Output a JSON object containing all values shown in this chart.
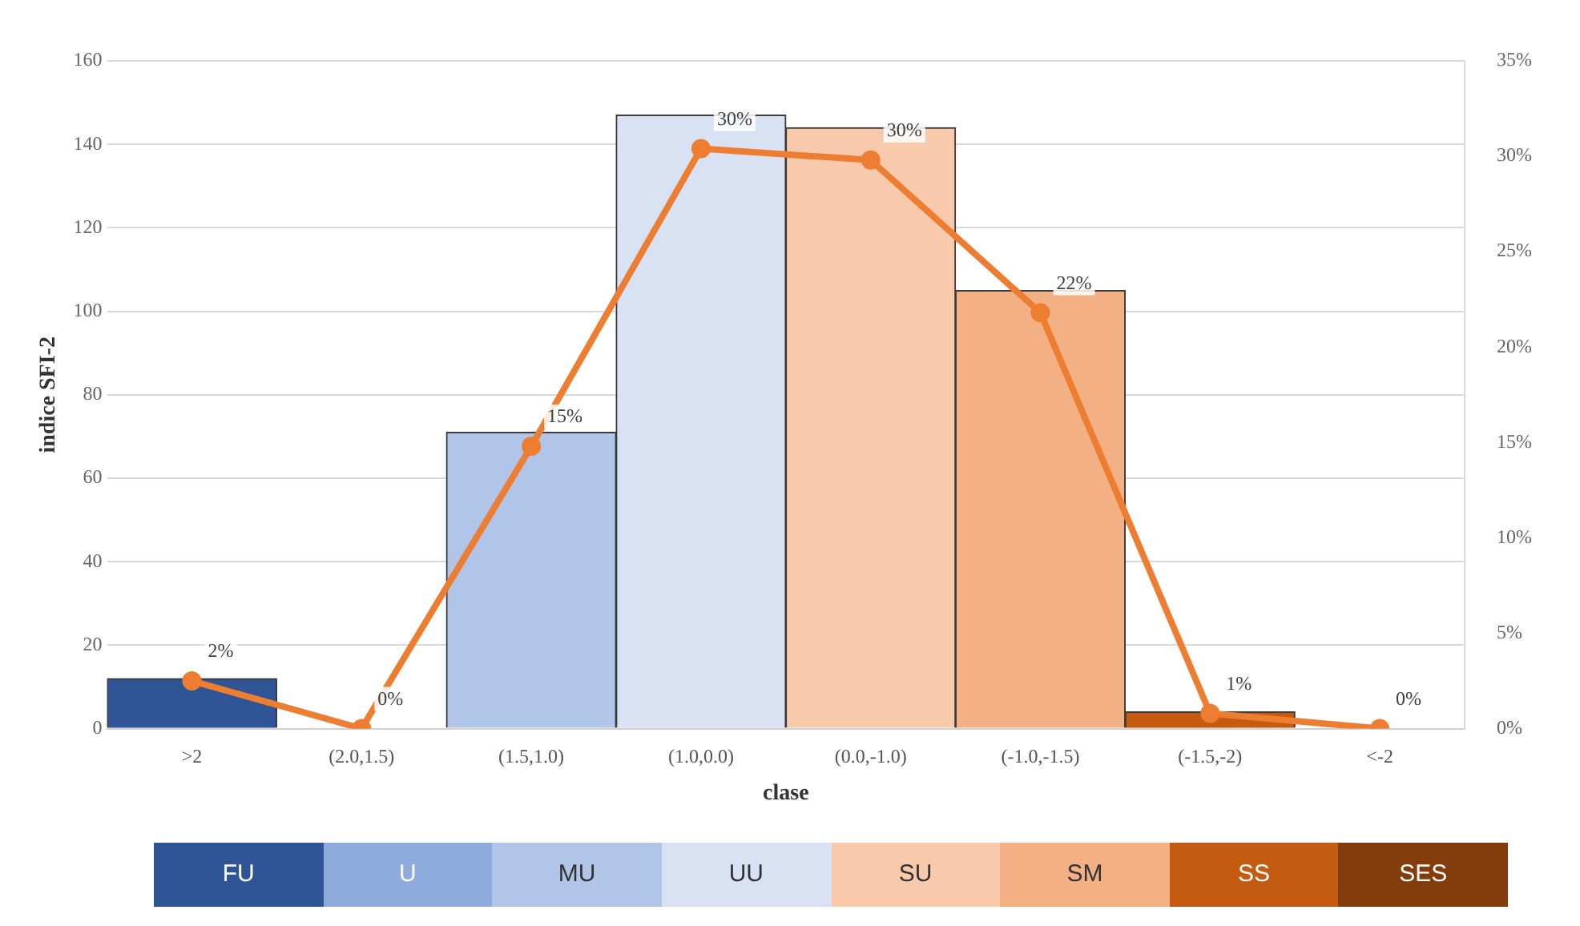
{
  "chart_data": {
    "type": "bar",
    "xlabel": "clase",
    "ylabel": "indice SFI-2",
    "categories": [
      ">2",
      "(2.0,1.5)",
      "(1.5,1.0)",
      "(1.0,0.0)",
      "(0.0,-1.0)",
      "(-1.0,-1.5)",
      "(-1.5,-2)",
      "<-2"
    ],
    "series": [
      {
        "values": [
          12,
          0,
          71,
          147,
          144,
          105,
          4,
          0
        ],
        "colors": [
          "#2f5597",
          "#8faadc",
          "#b0c5e7",
          "#d8e2f3",
          "#f8caab",
          "#f3b085",
          "#c55a11",
          "#843c0c"
        ]
      },
      {
        "type": "line",
        "axis": "y2",
        "color": "#ed7d31",
        "marker": "circle",
        "values": [
          2.5,
          0,
          14.8,
          30.4,
          29.8,
          21.8,
          0.8,
          0
        ],
        "value_labels": [
          "2%",
          "0%",
          "15%",
          "30%",
          "30%",
          "22%",
          "1%",
          "0%"
        ]
      }
    ],
    "ylim": [
      0,
      160
    ],
    "yticks": [
      0,
      20,
      40,
      60,
      80,
      100,
      120,
      140,
      160
    ],
    "y2lim": [
      0,
      35
    ],
    "y2ticks": [
      {
        "value": 0,
        "label": "0%"
      },
      {
        "value": 5,
        "label": "5%"
      },
      {
        "value": 10,
        "label": "10%"
      },
      {
        "value": 15,
        "label": "15%"
      },
      {
        "value": 20,
        "label": "20%"
      },
      {
        "value": 25,
        "label": "25%"
      },
      {
        "value": 30,
        "label": "30%"
      },
      {
        "value": 35,
        "label": "35%"
      }
    ],
    "grid": "y",
    "legend": false,
    "annotations": [
      "FU",
      "U",
      "MU",
      "UU",
      "SU",
      "SM",
      "SS",
      "SES"
    ]
  }
}
